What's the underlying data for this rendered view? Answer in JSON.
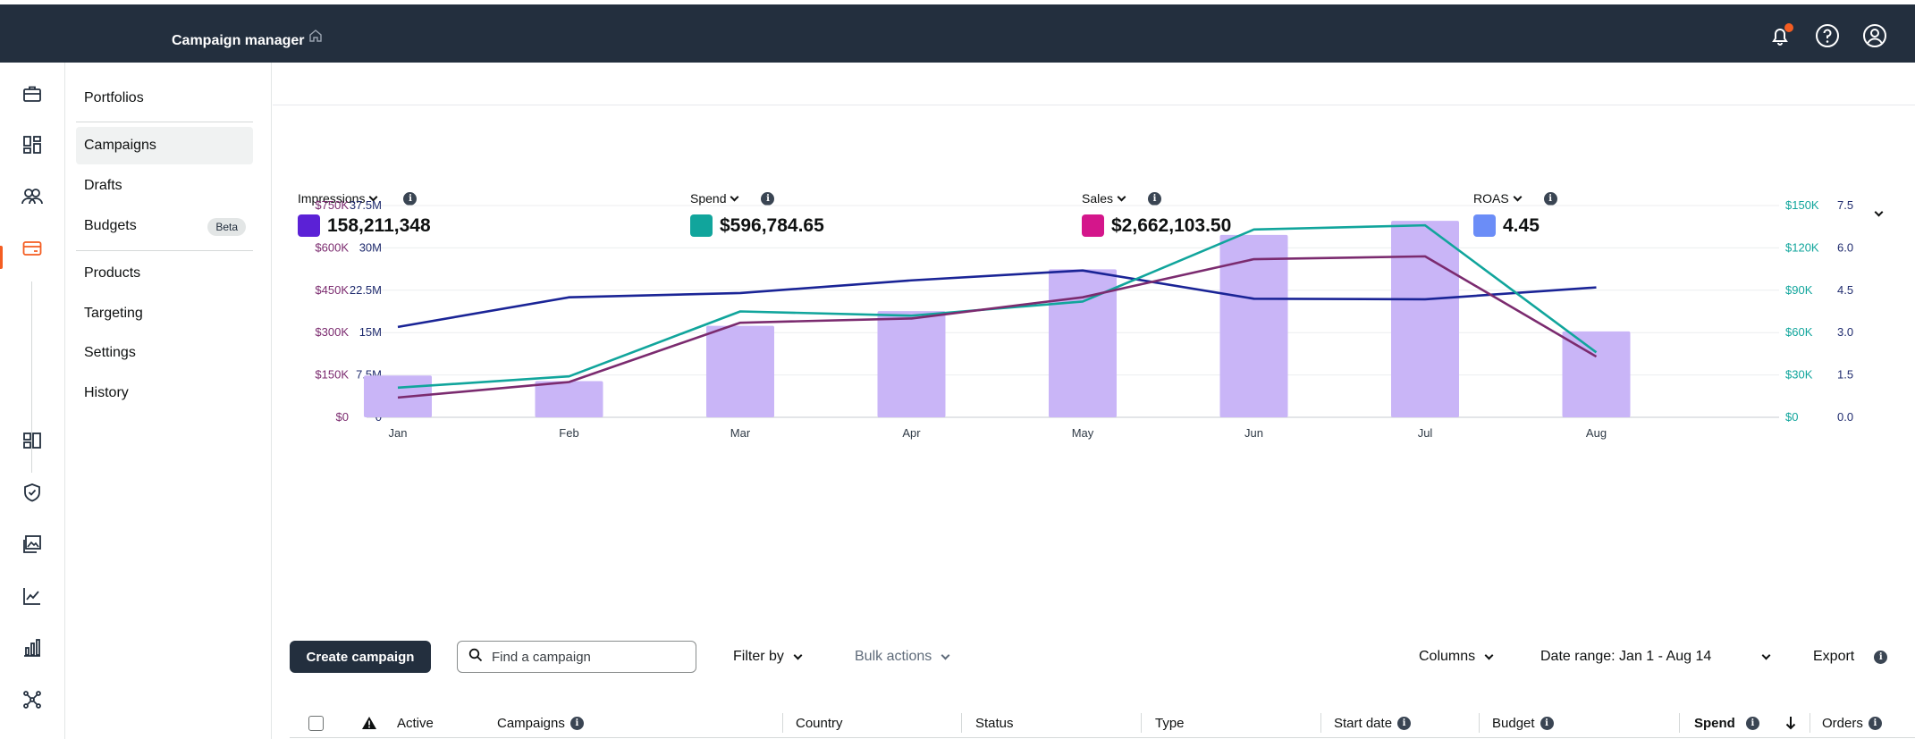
{
  "header": {
    "title": "Campaign manager",
    "icons": [
      "home-icon",
      "bell-icon",
      "help-icon",
      "account-icon"
    ],
    "notification_dot_color": "#f45d22"
  },
  "rail": {
    "icons": [
      "briefcase-icon",
      "dashboard-icon",
      "audiences-icon",
      "campaigns-card-icon",
      "media-icon",
      "shield-icon",
      "images-icon",
      "trend-icon",
      "bar-chart-icon",
      "network-icon"
    ],
    "active": "campaigns-card-icon",
    "accent": "#f45d22"
  },
  "subnav": {
    "portfolios": "Portfolios",
    "campaigns": "Campaigns",
    "drafts": "Drafts",
    "budgets": "Budgets",
    "beta": "Beta",
    "products": "Products",
    "targeting": "Targeting",
    "settings": "Settings",
    "history": "History"
  },
  "metrics": [
    {
      "label": "Impressions",
      "value": "158,211,348",
      "color": "#5b21d6"
    },
    {
      "label": "Spend",
      "value": "$596,784.65",
      "color": "#11a59c"
    },
    {
      "label": "Sales",
      "value": "$2,662,103.50",
      "color": "#d4168b"
    },
    {
      "label": "ROAS",
      "value": "4.45",
      "color": "#6b8df7"
    }
  ],
  "chart_data": {
    "type": "bar",
    "categories": [
      "Jan",
      "Feb",
      "Mar",
      "Apr",
      "May",
      "Jun",
      "Jul",
      "Aug"
    ],
    "axes": {
      "sales_left": {
        "ticks": [
          "$0",
          "$150K",
          "$300K",
          "$450K",
          "$600K",
          "$750K"
        ],
        "range": [
          0,
          750000
        ],
        "color": "#7b2b6f"
      },
      "impressions_left": {
        "ticks": [
          "0",
          "7.5M",
          "15M",
          "22.5M",
          "30M",
          "37.5M"
        ],
        "range": [
          0,
          37500000
        ],
        "color": "#1f2b6e"
      },
      "spend_right": {
        "ticks": [
          "$0",
          "$30K",
          "$60K",
          "$90K",
          "$120K",
          "$150K"
        ],
        "range": [
          0,
          150000
        ],
        "color": "#11a59c"
      },
      "roas_right": {
        "ticks": [
          "0.0",
          "1.5",
          "3.0",
          "4.5",
          "6.0",
          "7.5"
        ],
        "range": [
          0,
          7.5
        ],
        "color": "#1f2b6e"
      }
    },
    "series": [
      {
        "axis": "impressions_left",
        "kind": "bar",
        "color": "#c9b5f7",
        "values": [
          7400000,
          6400000,
          16200000,
          18800000,
          26200000,
          32300000,
          34800000,
          15200000
        ]
      },
      {
        "axis": "roas_right",
        "kind": "line",
        "color": "#1a2496",
        "values": [
          3.2,
          4.25,
          4.4,
          4.85,
          5.2,
          4.2,
          4.18,
          4.6
        ]
      },
      {
        "axis": "spend_right",
        "kind": "line",
        "color": "#11a59c",
        "values": [
          21000,
          29000,
          75000,
          72000,
          82000,
          133000,
          136000,
          46000
        ]
      },
      {
        "axis": "sales_left",
        "kind": "line",
        "color": "#7b2b6f",
        "values": [
          70000,
          125000,
          335000,
          350000,
          425000,
          560000,
          570000,
          215000
        ]
      }
    ],
    "grid": true
  },
  "toolbar": {
    "create": "Create campaign",
    "search_placeholder": "Find a campaign",
    "filter": "Filter by",
    "bulk": "Bulk actions",
    "columns": "Columns",
    "date_range": "Date range: Jan 1 - Aug 14",
    "export": "Export"
  },
  "table": {
    "headers": {
      "active": "Active",
      "campaigns": "Campaigns",
      "country": "Country",
      "status": "Status",
      "type": "Type",
      "start_date": "Start date",
      "budget": "Budget",
      "spend": "Spend",
      "orders": "Orders"
    }
  }
}
